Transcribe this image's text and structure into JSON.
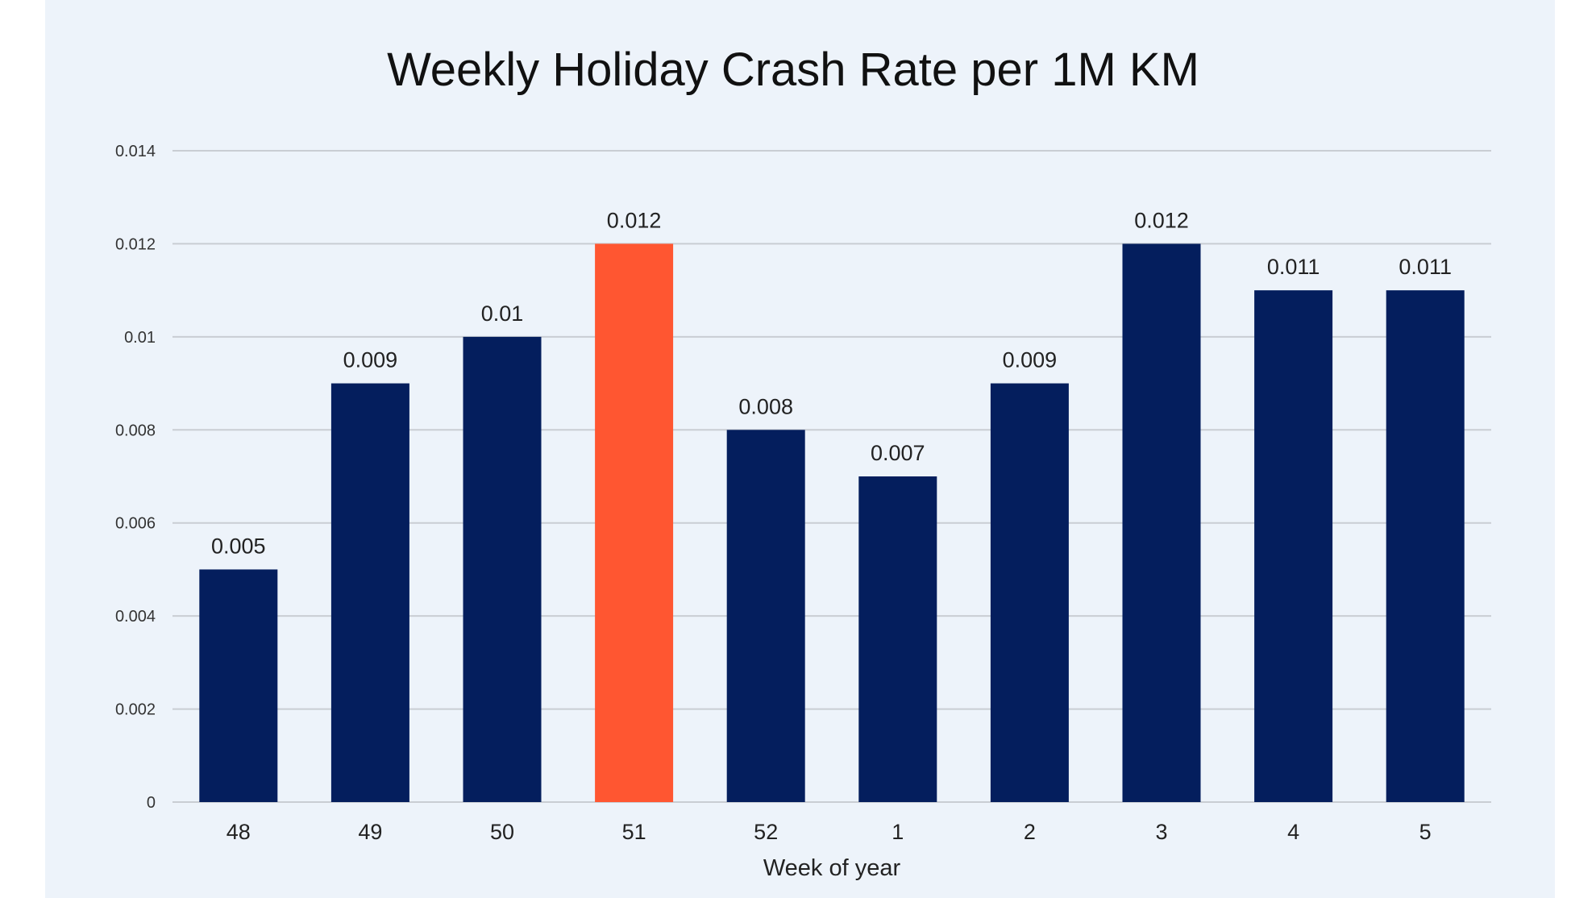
{
  "chart_data": {
    "type": "bar",
    "title": "Weekly Holiday Crash Rate per 1M KM",
    "xlabel": "Week of year",
    "ylabel": "",
    "categories": [
      "48",
      "49",
      "50",
      "51",
      "52",
      "1",
      "2",
      "3",
      "4",
      "5"
    ],
    "values": [
      0.005,
      0.009,
      0.01,
      0.012,
      0.008,
      0.007,
      0.009,
      0.012,
      0.011,
      0.011
    ],
    "data_labels": [
      "0.005",
      "0.009",
      "0.01",
      "0.012",
      "0.008",
      "0.007",
      "0.009",
      "0.012",
      "0.011",
      "0.011"
    ],
    "ylim": [
      0,
      0.014
    ],
    "y_ticks": [
      0,
      0.002,
      0.004,
      0.006,
      0.008,
      0.01,
      0.012,
      0.014
    ],
    "y_tick_labels": [
      "0",
      "0.002",
      "0.004",
      "0.006",
      "0.008",
      "0.01",
      "0.012",
      "0.014"
    ],
    "grid": true,
    "legend": "none",
    "highlight_category": "51",
    "colors": {
      "bar": "#041e5d",
      "highlight": "#ff5631",
      "gridline": "#c9cdd3",
      "background": "#edf3fa"
    }
  }
}
